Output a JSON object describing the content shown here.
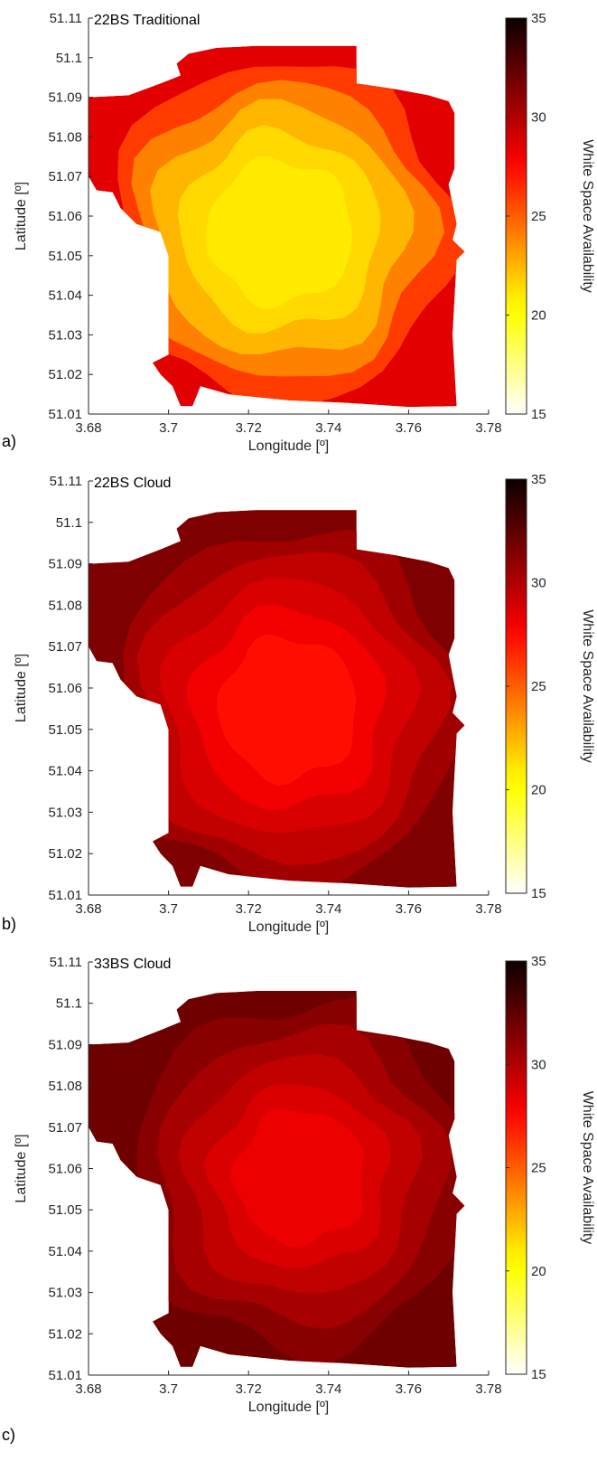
{
  "chart_data": [
    {
      "type": "heatmap",
      "panel_label": "a)",
      "title": "22BS Traditional",
      "xlabel": "Longitude [º]",
      "ylabel": "Latitude [º]",
      "xlim": [
        3.68,
        3.78
      ],
      "ylim": [
        51.01,
        51.11
      ],
      "xticks": [
        "3.68",
        "3.7",
        "3.72",
        "3.74",
        "3.76",
        "3.78"
      ],
      "yticks": [
        "51.01",
        "51.02",
        "51.03",
        "51.04",
        "51.05",
        "51.06",
        "51.07",
        "51.08",
        "51.09",
        "51.1",
        "51.11"
      ],
      "grid": false,
      "colorbar": {
        "label": "White Space Availability",
        "range": [
          15,
          35
        ],
        "ticks": [
          "15",
          "20",
          "25",
          "30",
          "35"
        ]
      },
      "region_center": [
        3.728,
        51.056
      ],
      "levels": [
        {
          "value": 28.5,
          "scale": 1.0
        },
        {
          "value": 26.0,
          "scale": 0.9
        },
        {
          "value": 24.0,
          "scale": 0.78
        },
        {
          "value": 22.5,
          "scale": 0.66
        },
        {
          "value": 21.5,
          "scale": 0.52
        },
        {
          "value": 21.0,
          "scale": 0.38
        }
      ]
    },
    {
      "type": "heatmap",
      "panel_label": "b)",
      "title": "22BS Cloud",
      "xlabel": "Longitude [º]",
      "ylabel": "Latitude [º]",
      "xlim": [
        3.68,
        3.78
      ],
      "ylim": [
        51.01,
        51.11
      ],
      "xticks": [
        "3.68",
        "3.7",
        "3.72",
        "3.74",
        "3.76",
        "3.78"
      ],
      "yticks": [
        "51.01",
        "51.02",
        "51.03",
        "51.04",
        "51.05",
        "51.06",
        "51.07",
        "51.08",
        "51.09",
        "51.1",
        "51.11"
      ],
      "grid": false,
      "colorbar": {
        "label": "White Space Availability",
        "range": [
          15,
          35
        ],
        "ticks": [
          "15",
          "20",
          "25",
          "30",
          "35"
        ]
      },
      "region_center": [
        3.73,
        51.055
      ],
      "levels": [
        {
          "value": 31.5,
          "scale": 1.0
        },
        {
          "value": 30.5,
          "scale": 0.9
        },
        {
          "value": 29.5,
          "scale": 0.78
        },
        {
          "value": 28.8,
          "scale": 0.64
        },
        {
          "value": 28.0,
          "scale": 0.5
        },
        {
          "value": 27.3,
          "scale": 0.36
        }
      ]
    },
    {
      "type": "heatmap",
      "panel_label": "c)",
      "title": "33BS Cloud",
      "xlabel": "Longitude [º]",
      "ylabel": "Latitude [º]",
      "xlim": [
        3.68,
        3.78
      ],
      "ylim": [
        51.01,
        51.11
      ],
      "xticks": [
        "3.68",
        "3.7",
        "3.72",
        "3.74",
        "3.76",
        "3.78"
      ],
      "yticks": [
        "51.01",
        "51.02",
        "51.03",
        "51.04",
        "51.05",
        "51.06",
        "51.07",
        "51.08",
        "51.09",
        "51.1",
        "51.11"
      ],
      "grid": false,
      "colorbar": {
        "label": "White Space Availability",
        "range": [
          15,
          35
        ],
        "ticks": [
          "15",
          "20",
          "25",
          "30",
          "35"
        ]
      },
      "region_center": [
        3.733,
        51.058
      ],
      "levels": [
        {
          "value": 32.0,
          "scale": 1.0
        },
        {
          "value": 31.2,
          "scale": 0.88
        },
        {
          "value": 30.3,
          "scale": 0.74
        },
        {
          "value": 29.5,
          "scale": 0.6
        },
        {
          "value": 28.7,
          "scale": 0.46
        },
        {
          "value": 28.2,
          "scale": 0.34
        }
      ]
    }
  ]
}
